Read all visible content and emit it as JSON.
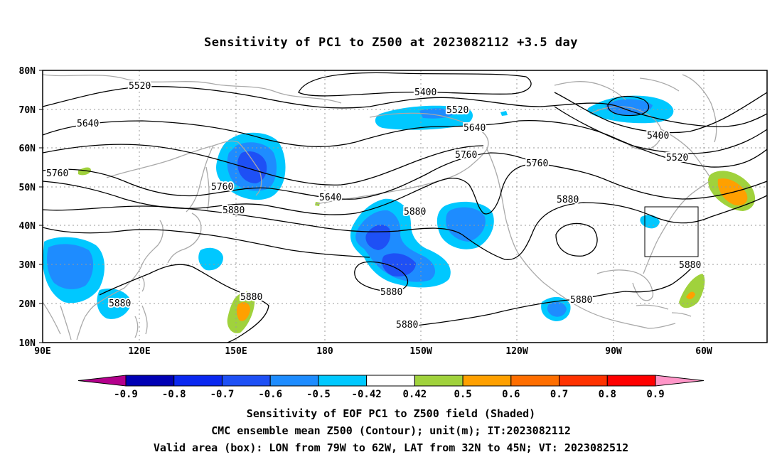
{
  "title": "Sensitivity of PC1 to Z500 at 2023082112 +3.5 day",
  "lat_labels": [
    "80N",
    "70N",
    "60N",
    "50N",
    "40N",
    "30N",
    "20N",
    "10N"
  ],
  "lon_labels": [
    "90E",
    "120E",
    "150E",
    "180",
    "150W",
    "120W",
    "90W",
    "60W"
  ],
  "contour_labels": [
    {
      "text": "5520"
    },
    {
      "text": "5400"
    },
    {
      "text": "5520"
    },
    {
      "text": "5640"
    },
    {
      "text": "5640"
    },
    {
      "text": "5760"
    },
    {
      "text": "5760"
    },
    {
      "text": "5760"
    },
    {
      "text": "5760"
    },
    {
      "text": "5640"
    },
    {
      "text": "5880"
    },
    {
      "text": "5880"
    },
    {
      "text": "5880"
    },
    {
      "text": "5400"
    },
    {
      "text": "5520"
    },
    {
      "text": "5880"
    },
    {
      "text": "5880"
    },
    {
      "text": "5880"
    },
    {
      "text": "5880"
    },
    {
      "text": "5880"
    },
    {
      "text": "5880"
    }
  ],
  "colorbar": {
    "labels": [
      "-0.9",
      "-0.8",
      "-0.7",
      "-0.6",
      "-0.5",
      "-0.42",
      "0.42",
      "0.5",
      "0.6",
      "0.7",
      "0.8",
      "0.9"
    ],
    "colors": [
      "#0000b4",
      "#0a28f0",
      "#1e50f5",
      "#1e8cff",
      "#00c8ff",
      "#ffffff",
      "#a0d23c",
      "#ffa000",
      "#ff6e00",
      "#ff3200",
      "#ff0000"
    ],
    "low_end_color": "#b4008c",
    "high_end_color": "#ff96c8"
  },
  "footer": {
    "line1": "Sensitivity of EOF PC1 to Z500 field (Shaded)",
    "line2": "CMC ensemble mean Z500 (Contour); unit(m); IT:2023082112",
    "line3": "Valid area (box): LON from 79W to 62W, LAT from 32N to 45N; VT: 2023082512"
  }
}
